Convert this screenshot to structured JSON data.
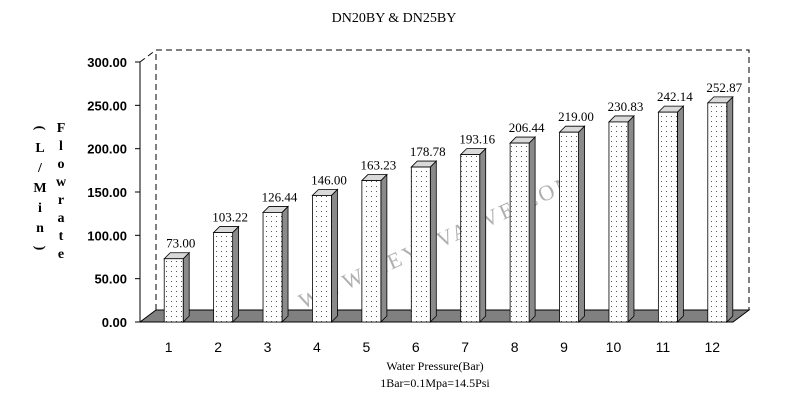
{
  "chart_data": {
    "type": "bar",
    "title": "DN20BY & DN25BY",
    "xlabel": "Water Pressure(Bar)",
    "xlabel_note": "1Bar=0.1Mpa=14.5Psi",
    "ylabel_left": "(L/Min)",
    "ylabel_right": "Flowrate",
    "watermark": "WWW.KEYUVALVE.COM",
    "categories": [
      "1",
      "2",
      "3",
      "4",
      "5",
      "6",
      "7",
      "8",
      "9",
      "10",
      "11",
      "12"
    ],
    "values": [
      73.0,
      103.22,
      126.44,
      146.0,
      163.23,
      178.78,
      193.16,
      206.44,
      219.0,
      230.83,
      242.14,
      252.87
    ],
    "value_labels": [
      "73.00",
      "103.22",
      "126.44",
      "146.00",
      "163.23",
      "178.78",
      "193.16",
      "206.44",
      "219.00",
      "230.83",
      "242.14",
      "252.87"
    ],
    "ylim": [
      0,
      300
    ],
    "yticks": [
      "0.00",
      "50.00",
      "100.00",
      "150.00",
      "200.00",
      "250.00",
      "300.00"
    ],
    "grid": false,
    "legend": "none",
    "colors": {
      "bar_face": "#ffffff",
      "bar_side": "#8a8a8a",
      "bar_top": "#d9d9d9",
      "floor": "#808080",
      "dots": "#333333"
    }
  }
}
